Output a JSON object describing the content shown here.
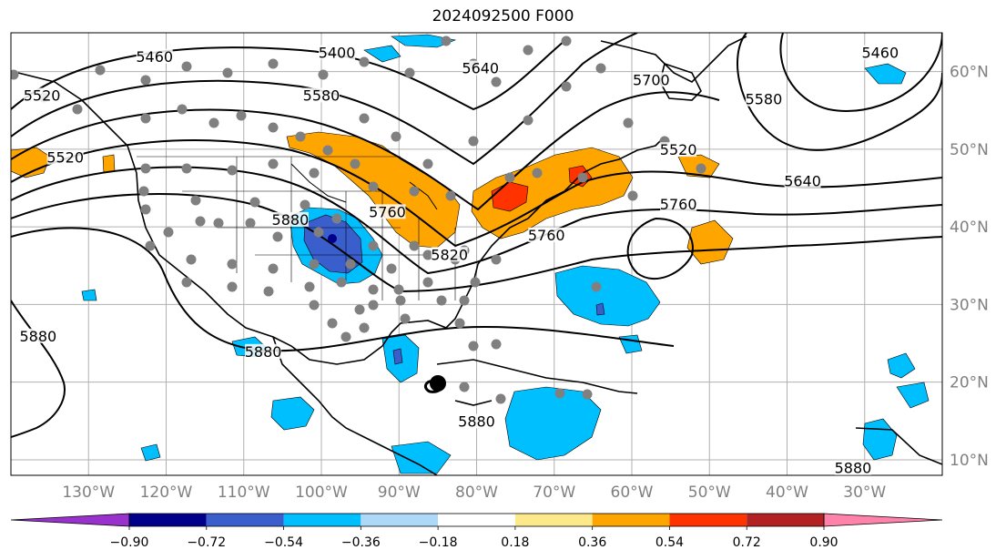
{
  "title": "2024092500 F000",
  "map": {
    "lon_ticks": [
      "130°W",
      "120°W",
      "110°W",
      "100°W",
      "90°W",
      "80°W",
      "70°W",
      "60°W",
      "50°W",
      "40°W",
      "30°W"
    ],
    "lat_ticks": [
      "60°N",
      "50°N",
      "40°N",
      "30°N",
      "20°N",
      "10°N"
    ],
    "contour_labels": [
      {
        "text": "5460",
        "lon": -121.5,
        "lat": 61.5
      },
      {
        "text": "5400",
        "lon": -98,
        "lat": 62
      },
      {
        "text": "5580",
        "lon": -100,
        "lat": 56.5
      },
      {
        "text": "5640",
        "lon": -79.5,
        "lat": 60
      },
      {
        "text": "5700",
        "lon": -57.5,
        "lat": 58.5
      },
      {
        "text": "5580",
        "lon": -43,
        "lat": 56
      },
      {
        "text": "5460",
        "lon": -28,
        "lat": 62
      },
      {
        "text": "5520",
        "lon": -54,
        "lat": 49.5
      },
      {
        "text": "5640",
        "lon": -38,
        "lat": 45.5
      },
      {
        "text": "5760",
        "lon": -54,
        "lat": 42.5
      },
      {
        "text": "5760",
        "lon": -71,
        "lat": 38.5
      },
      {
        "text": "5880",
        "lon": -104,
        "lat": 40.5
      },
      {
        "text": "5880",
        "lon": -136.5,
        "lat": 25.5
      },
      {
        "text": "5880",
        "lon": -107.5,
        "lat": 23.5
      },
      {
        "text": "5880",
        "lon": -80,
        "lat": 14.5
      },
      {
        "text": "5880",
        "lon": -31.5,
        "lat": 8.5
      },
      {
        "text": "5520",
        "lon": -133,
        "lat": 48.5
      },
      {
        "text": "5520",
        "lon": -136,
        "lat": 56.5
      },
      {
        "text": "5760",
        "lon": -91.5,
        "lat": 41.5
      },
      {
        "text": "5820",
        "lon": -83.5,
        "lat": 36
      }
    ],
    "colorbar": {
      "ticks": [
        "−0.90",
        "−0.72",
        "−0.54",
        "−0.36",
        "−0.18",
        "0.18",
        "0.36",
        "0.54",
        "0.72",
        "0.90"
      ],
      "colors": [
        "#9932cc",
        "#00008b",
        "#3a5fcd",
        "#00bfff",
        "#add8f8",
        "#ffffff",
        "#fce98a",
        "#ffa500",
        "#ff3300",
        "#b22222",
        "#ff82ab"
      ]
    }
  }
}
